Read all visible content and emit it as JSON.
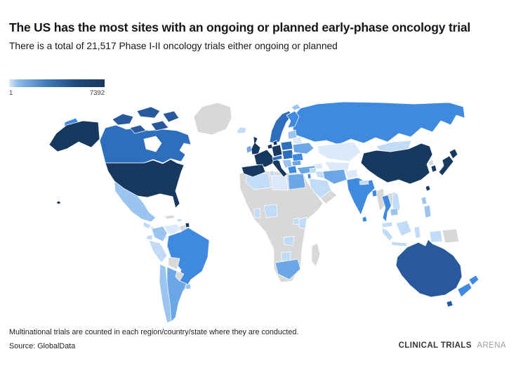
{
  "footer": {
    "note": "Multinational trials are counted in each region/country/state where they are conducted.",
    "source": "Source: GlobalData",
    "brand_bold": "CLINICAL TRIALS",
    "brand_light": "ARENA"
  },
  "chart_data": {
    "type": "heatmap",
    "subtype": "choropleth_world_map",
    "title": "The US has the most sites with an ongoing or planned early-phase oncology trial",
    "subtitle": "There is a total of 21,517 Phase I-II oncology trials either ongoing or planned",
    "total_phase_1_2_trials": "21,517",
    "color_scale": {
      "min": 1,
      "max": 7392,
      "min_label": "1",
      "max_label": "7392",
      "gradient": [
        "#dbe8f7",
        "#8cb8e8",
        "#3f7ab8",
        "#1f4a7d",
        "#17395f"
      ]
    },
    "legend_position": "top-left",
    "palette": {
      "no_data": "#d8d8d8",
      "water": "#ffffff",
      "level_1": "#dce9fb",
      "level_2": "#c2dbf7",
      "level_3": "#9cc4f0",
      "level_4": "#6ba6e6",
      "level_5": "#3f89de",
      "level_6": "#2e6fbd",
      "level_7": "#27599c",
      "level_8": "#17395f"
    },
    "highest_country": "united-states",
    "regions": [
      {
        "name": "africa",
        "level": 0,
        "color": "#d8d8d8"
      },
      {
        "name": "algeria",
        "level": 2,
        "color": "#c2dbf7"
      },
      {
        "name": "tunisia",
        "level": 2,
        "color": "#c2dbf7"
      },
      {
        "name": "libya",
        "level": 1,
        "color": "#dce9fb"
      },
      {
        "name": "egypt",
        "level": 4,
        "color": "#6ba6e6"
      },
      {
        "name": "ghana",
        "level": 2,
        "color": "#c2dbf7"
      },
      {
        "name": "nigeria",
        "level": 2,
        "color": "#c2dbf7"
      },
      {
        "name": "kenya",
        "level": 2,
        "color": "#c2dbf7"
      },
      {
        "name": "uganda",
        "level": 2,
        "color": "#c2dbf7"
      },
      {
        "name": "zambia",
        "level": 2,
        "color": "#c2dbf7"
      },
      {
        "name": "botswana",
        "level": 2,
        "color": "#c2dbf7"
      },
      {
        "name": "south-africa",
        "level": 4,
        "color": "#6ba6e6"
      },
      {
        "name": "madagascar",
        "level": 0,
        "color": "#d8d8d8"
      },
      {
        "name": "russia",
        "level": 5,
        "color": "#3f89de"
      },
      {
        "name": "russia-chukotka",
        "level": 5,
        "color": "#3f89de"
      },
      {
        "name": "kazakhstan",
        "level": 1,
        "color": "#dce9fb"
      },
      {
        "name": "central-asia",
        "level": 1,
        "color": "#dce9fb"
      },
      {
        "name": "caucasus",
        "level": 1,
        "color": "#dce9fb"
      },
      {
        "name": "mongolia",
        "level": 2,
        "color": "#c2dbf7"
      },
      {
        "name": "china",
        "level": 8,
        "color": "#17395f"
      },
      {
        "name": "taiwan",
        "level": 8,
        "color": "#17395f"
      },
      {
        "name": "canada",
        "level": 6,
        "color": "#2e6fbd"
      },
      {
        "name": "canada-arctic",
        "level": 7,
        "color": "#27599c"
      },
      {
        "name": "hudson-bay",
        "level": 0,
        "color": "#ffffff",
        "water": true
      },
      {
        "name": "greenland",
        "level": 0,
        "color": "#d8d8d8"
      },
      {
        "name": "alaska",
        "level": 8,
        "color": "#17395f"
      },
      {
        "name": "usa",
        "level": 8,
        "color": "#17395f"
      },
      {
        "name": "hawaii",
        "level": 8,
        "color": "#17395f"
      },
      {
        "name": "mexico",
        "level": 3,
        "color": "#9cc4f0"
      },
      {
        "name": "guatemala",
        "level": 2,
        "color": "#c2dbf7"
      },
      {
        "name": "central-america",
        "level": 0,
        "color": "#d8d8d8"
      },
      {
        "name": "panama-costa-rica",
        "level": 2,
        "color": "#c2dbf7"
      },
      {
        "name": "cuba",
        "level": 0,
        "color": "#d8d8d8"
      },
      {
        "name": "hispaniola",
        "level": 2,
        "color": "#c2dbf7"
      },
      {
        "name": "colombia",
        "level": 3,
        "color": "#9cc4f0"
      },
      {
        "name": "venezuela",
        "level": 1,
        "color": "#dce9fb"
      },
      {
        "name": "guyana-suriname",
        "level": 0,
        "color": "#d8d8d8"
      },
      {
        "name": "french-guiana",
        "level": 8,
        "color": "#17395f"
      },
      {
        "name": "ecuador",
        "level": 2,
        "color": "#c2dbf7"
      },
      {
        "name": "peru",
        "level": 2,
        "color": "#c2dbf7"
      },
      {
        "name": "brazil",
        "level": 5,
        "color": "#3f89de"
      },
      {
        "name": "bolivia",
        "level": 0,
        "color": "#d8d8d8"
      },
      {
        "name": "paraguay",
        "level": 0,
        "color": "#d8d8d8"
      },
      {
        "name": "chile",
        "level": 3,
        "color": "#9cc4f0"
      },
      {
        "name": "argentina",
        "level": 4,
        "color": "#6ba6e6"
      },
      {
        "name": "uruguay",
        "level": 3,
        "color": "#9cc4f0"
      },
      {
        "name": "iceland",
        "level": 2,
        "color": "#c2dbf7"
      },
      {
        "name": "ireland",
        "level": 4,
        "color": "#6ba6e6"
      },
      {
        "name": "united-kingdom",
        "level": 8,
        "color": "#17395f"
      },
      {
        "name": "norway-sweden",
        "level": 6,
        "color": "#2e6fbd"
      },
      {
        "name": "finland",
        "level": 5,
        "color": "#3f89de"
      },
      {
        "name": "svalbard",
        "level": 3,
        "color": "#9cc4f0"
      },
      {
        "name": "denmark",
        "level": 8,
        "color": "#17395f"
      },
      {
        "name": "baltics",
        "level": 3,
        "color": "#9cc4f0"
      },
      {
        "name": "belarus",
        "level": 1,
        "color": "#dce9fb"
      },
      {
        "name": "poland",
        "level": 6,
        "color": "#2e6fbd"
      },
      {
        "name": "germany",
        "level": 8,
        "color": "#17395f"
      },
      {
        "name": "benelux",
        "level": 8,
        "color": "#17395f"
      },
      {
        "name": "france",
        "level": 8,
        "color": "#17395f"
      },
      {
        "name": "spain-portugal",
        "level": 8,
        "color": "#17395f"
      },
      {
        "name": "italy",
        "level": 8,
        "color": "#17395f"
      },
      {
        "name": "switzerland-austria",
        "level": 6,
        "color": "#2e6fbd"
      },
      {
        "name": "czech-slovakia-hungary",
        "level": 6,
        "color": "#2e6fbd"
      },
      {
        "name": "romania",
        "level": 5,
        "color": "#3f89de"
      },
      {
        "name": "balkans",
        "level": 3,
        "color": "#9cc4f0"
      },
      {
        "name": "bulgaria",
        "level": 4,
        "color": "#6ba6e6"
      },
      {
        "name": "greece",
        "level": 5,
        "color": "#3f89de"
      },
      {
        "name": "ukraine",
        "level": 4,
        "color": "#6ba6e6"
      },
      {
        "name": "turkey",
        "level": 4,
        "color": "#6ba6e6"
      },
      {
        "name": "syria-levant",
        "level": 2,
        "color": "#c2dbf7"
      },
      {
        "name": "israel",
        "level": 5,
        "color": "#3f89de"
      },
      {
        "name": "iraq",
        "level": 2,
        "color": "#c2dbf7"
      },
      {
        "name": "iran",
        "level": 4,
        "color": "#6ba6e6"
      },
      {
        "name": "saudi-arabia",
        "level": 2,
        "color": "#c2dbf7"
      },
      {
        "name": "yemen-oman",
        "level": 0,
        "color": "#d8d8d8"
      },
      {
        "name": "afghanistan",
        "level": 1,
        "color": "#dce9fb"
      },
      {
        "name": "pakistan",
        "level": 1,
        "color": "#dce9fb"
      },
      {
        "name": "india",
        "level": 5,
        "color": "#3f89de"
      },
      {
        "name": "nepal",
        "level": 2,
        "color": "#c2dbf7"
      },
      {
        "name": "bangladesh",
        "level": 5,
        "color": "#3f89de"
      },
      {
        "name": "sri-lanka",
        "level": 5,
        "color": "#3f89de"
      },
      {
        "name": "myanmar",
        "level": 0,
        "color": "#d8d8d8"
      },
      {
        "name": "thailand",
        "level": 5,
        "color": "#3f89de"
      },
      {
        "name": "laos",
        "level": 0,
        "color": "#d8d8d8"
      },
      {
        "name": "vietnam",
        "level": 2,
        "color": "#c2dbf7"
      },
      {
        "name": "cambodia",
        "level": 3,
        "color": "#9cc4f0"
      },
      {
        "name": "malaysia",
        "level": 2,
        "color": "#c2dbf7"
      },
      {
        "name": "sumatra",
        "level": 2,
        "color": "#c2dbf7"
      },
      {
        "name": "java",
        "level": 2,
        "color": "#c2dbf7"
      },
      {
        "name": "borneo",
        "level": 2,
        "color": "#c2dbf7"
      },
      {
        "name": "sulawesi",
        "level": 2,
        "color": "#c2dbf7"
      },
      {
        "name": "west-papua",
        "level": 2,
        "color": "#c2dbf7"
      },
      {
        "name": "papua-new-guinea",
        "level": 0,
        "color": "#d8d8d8"
      },
      {
        "name": "philippines",
        "level": 3,
        "color": "#9cc4f0"
      },
      {
        "name": "north-korea",
        "level": 0,
        "color": "#d8d8d8"
      },
      {
        "name": "south-korea",
        "level": 8,
        "color": "#17395f"
      },
      {
        "name": "japan",
        "level": 8,
        "color": "#17395f"
      },
      {
        "name": "australia",
        "level": 7,
        "color": "#27599c"
      },
      {
        "name": "tasmania",
        "level": 7,
        "color": "#27599c"
      },
      {
        "name": "new-zealand",
        "level": 5,
        "color": "#3f89de"
      }
    ]
  }
}
